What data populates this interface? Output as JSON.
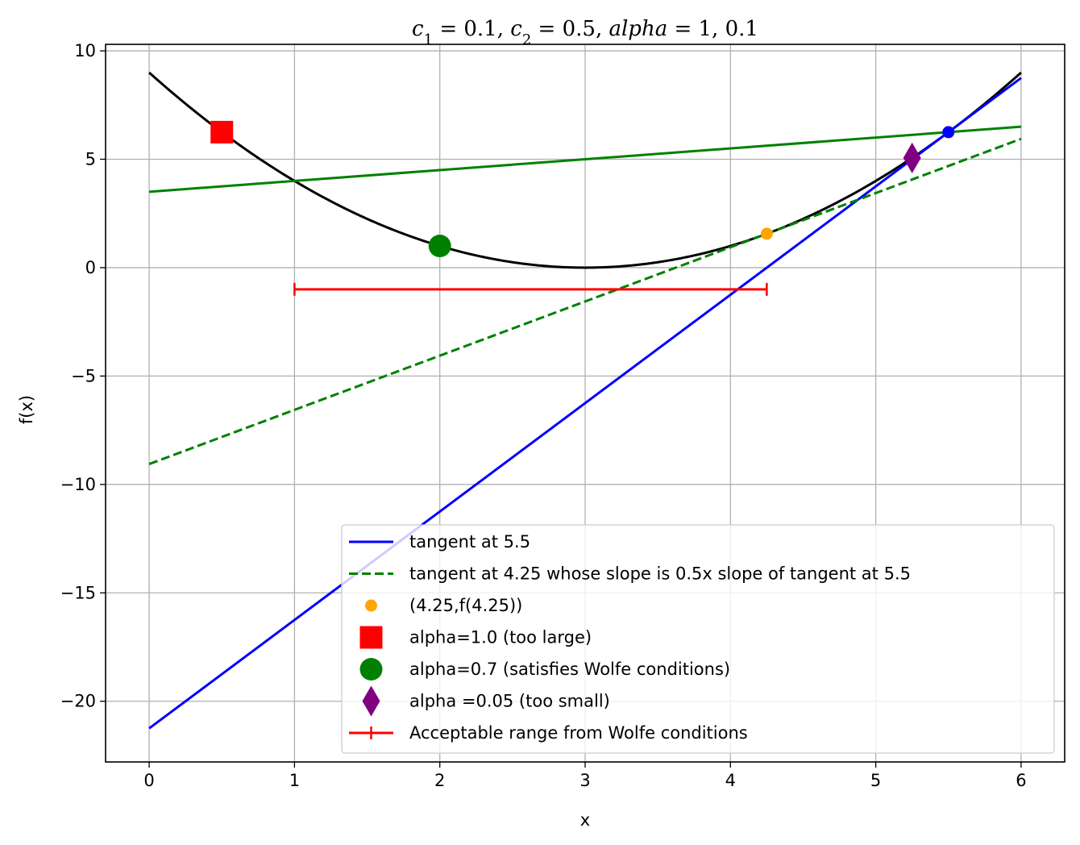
{
  "chart_data": {
    "type": "line",
    "title": "c₁ = 0.1, c₂ = 0.5, alpha = 1, 0.1",
    "xlabel": "x",
    "ylabel": "f(x)",
    "xlim": [
      -0.3,
      6.3
    ],
    "ylim": [
      -22.8,
      10.3
    ],
    "xticks": [
      0,
      1,
      2,
      3,
      4,
      5,
      6
    ],
    "yticks": [
      10,
      5,
      0,
      -5,
      -10,
      -15,
      -20
    ],
    "xtick_labels": [
      "0",
      "1",
      "2",
      "3",
      "4",
      "5",
      "6"
    ],
    "ytick_labels": [
      "10",
      "5",
      "0",
      "−5",
      "−10",
      "−15",
      "−20"
    ],
    "grid": true,
    "legend_position": "lower right",
    "curve": {
      "x": [
        0,
        0.5,
        1,
        1.5,
        2,
        2.5,
        3,
        3.5,
        4,
        4.5,
        5,
        5.5,
        6
      ],
      "y": [
        9,
        6.25,
        4,
        2.25,
        1,
        0.25,
        0,
        0.25,
        1,
        2.25,
        4,
        6.25,
        9
      ],
      "color": "#000000"
    },
    "series": [
      {
        "name": "tangent at 5.5",
        "style": "solid",
        "color": "#0000ff",
        "x": [
          0,
          6
        ],
        "y": [
          -21.25,
          8.75
        ]
      },
      {
        "name": "tangent at 4.25 whose slope is 0.5x slope of tangent at 5.5",
        "style": "dashed",
        "color": "#008000",
        "x": [
          0,
          6
        ],
        "y": [
          -9.06,
          5.94
        ]
      },
      {
        "name": "",
        "style": "solid",
        "color": "#008000",
        "x": [
          0,
          6
        ],
        "y": [
          3.5,
          6.5
        ]
      }
    ],
    "points": [
      {
        "name": "(4.25,f(4.25))",
        "marker": "circle-small",
        "color": "#ffa500",
        "x": 4.25,
        "y": 1.5625
      },
      {
        "name": "alpha=1.0 (too large)",
        "marker": "square",
        "color": "#ff0000",
        "x": 0.5,
        "y": 6.25
      },
      {
        "name": "alpha=0.7 (satisfies Wolfe conditions)",
        "marker": "circle-large",
        "color": "#008000",
        "x": 2,
        "y": 1
      },
      {
        "name": "alpha =0.05 (too small)",
        "marker": "diamond",
        "color": "#800080",
        "x": 5.25,
        "y": 5.0625
      },
      {
        "name": "",
        "marker": "circle-medium",
        "color": "#0000ff",
        "x": 5.5,
        "y": 6.25
      }
    ],
    "range": {
      "name": "Acceptable range from Wolfe conditions",
      "color": "#ff0000",
      "x": [
        1,
        4.25
      ],
      "y": -1
    },
    "legend": [
      "tangent at 5.5",
      "tangent at 4.25 whose slope is 0.5x slope of tangent at 5.5",
      "(4.25,f(4.25))",
      "alpha=1.0 (too large)",
      "alpha=0.7 (satisfies Wolfe conditions)",
      "alpha =0.05 (too small)",
      "Acceptable range from Wolfe conditions"
    ]
  }
}
